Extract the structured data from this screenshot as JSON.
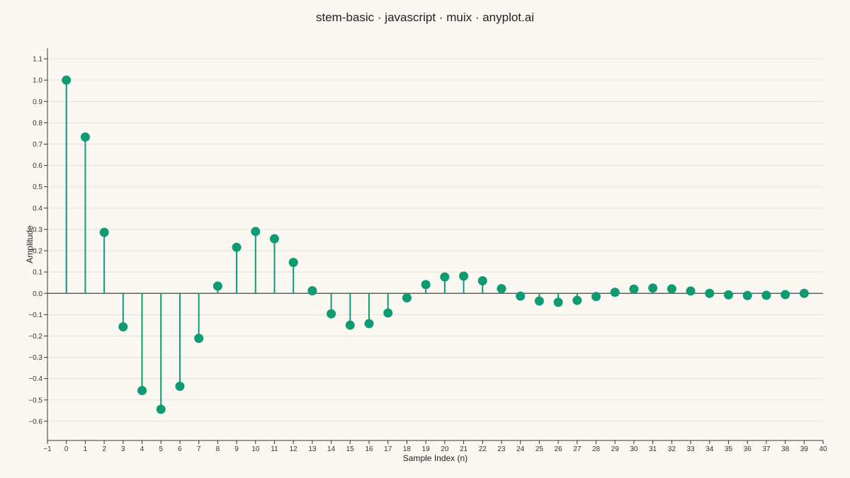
{
  "chart_data": {
    "type": "stem",
    "title": "stem-basic · javascript · muix · anyplot.ai",
    "xlabel": "Sample Index (n)",
    "ylabel": "Amplitude",
    "xlim": [
      -1,
      40
    ],
    "ylim": [
      -0.69,
      1.15
    ],
    "x_ticks": [
      -1,
      0,
      1,
      2,
      3,
      4,
      5,
      6,
      7,
      8,
      9,
      10,
      11,
      12,
      13,
      14,
      15,
      16,
      17,
      18,
      19,
      20,
      21,
      22,
      23,
      24,
      25,
      26,
      27,
      28,
      29,
      30,
      31,
      32,
      33,
      34,
      35,
      36,
      37,
      38,
      39,
      40
    ],
    "x_tick_labels": [
      "−1",
      "0",
      "1",
      "2",
      "3",
      "4",
      "5",
      "6",
      "7",
      "8",
      "9",
      "10",
      "11",
      "12",
      "13",
      "14",
      "15",
      "16",
      "17",
      "18",
      "19",
      "20",
      "21",
      "22",
      "23",
      "24",
      "25",
      "26",
      "27",
      "28",
      "29",
      "30",
      "31",
      "32",
      "33",
      "34",
      "35",
      "36",
      "37",
      "38",
      "39",
      "40"
    ],
    "y_ticks": [
      1.1,
      1.0,
      0.9,
      0.8,
      0.7,
      0.6,
      0.5,
      0.4,
      0.3,
      0.2,
      0.1,
      0.0,
      -0.1,
      -0.2,
      -0.3,
      -0.4,
      -0.5,
      -0.6
    ],
    "y_tick_labels": [
      "1.1",
      "1.0",
      "0.9",
      "0.8",
      "0.7",
      "0.6",
      "0.5",
      "0.4",
      "0.3",
      "0.2",
      "0.1",
      "0.0",
      "−0.1",
      "−0.2",
      "−0.3",
      "−0.4",
      "−0.5",
      "−0.6"
    ],
    "grid": "horizontal",
    "baseline": 0,
    "color": "#0E9B73",
    "x": [
      0,
      1,
      2,
      3,
      4,
      5,
      6,
      7,
      8,
      9,
      10,
      11,
      12,
      13,
      14,
      15,
      16,
      17,
      18,
      19,
      20,
      21,
      22,
      23,
      24,
      25,
      26,
      27,
      28,
      29,
      30,
      31,
      32,
      33,
      34,
      35,
      36,
      37,
      38,
      39
    ],
    "y": [
      1.0,
      0.733,
      0.286,
      -0.157,
      -0.456,
      -0.544,
      -0.436,
      -0.211,
      0.034,
      0.216,
      0.29,
      0.256,
      0.145,
      0.012,
      -0.096,
      -0.149,
      -0.142,
      -0.092,
      -0.021,
      0.041,
      0.077,
      0.081,
      0.059,
      0.022,
      -0.013,
      -0.036,
      -0.042,
      -0.033,
      -0.015,
      0.005,
      0.02,
      0.025,
      0.021,
      0.011,
      0.0,
      -0.007,
      -0.01,
      -0.009,
      -0.006,
      0.0
    ]
  }
}
